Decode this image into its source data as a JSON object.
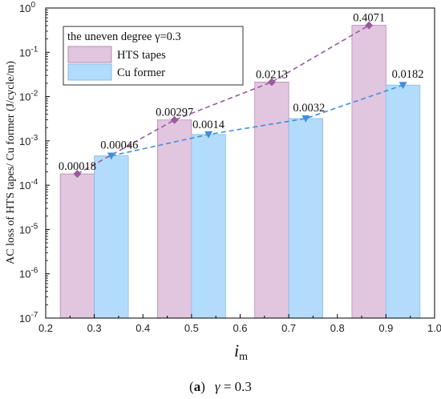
{
  "chart_data": {
    "type": "bar",
    "categories": [
      "0.3",
      "0.5",
      "0.7",
      "0.9"
    ],
    "category_x": [
      0.3,
      0.5,
      0.7,
      0.9
    ],
    "series": [
      {
        "name": "HTS tapes",
        "values": [
          0.00018,
          0.00297,
          0.0213,
          0.4071
        ],
        "labels": [
          "0.00018",
          "0.00297",
          "0.0213",
          "0.4071"
        ],
        "color": "#e2c6df",
        "edge": "#b78ab3",
        "line_color": "#9b5aa0",
        "marker": "diamond"
      },
      {
        "name": "Cu former",
        "values": [
          0.00046,
          0.0014,
          0.0032,
          0.0182
        ],
        "labels": [
          "0.00046",
          "0.0014",
          "0.0032",
          "0.0182"
        ],
        "color": "#b3dcfa",
        "edge": "#86bde6",
        "line_color": "#3f8fe0",
        "marker": "triangle-down"
      }
    ],
    "xlabel_main": "i",
    "xlabel_sub": "m",
    "ylabel": "AC loss of HTS tapes/ Cu former (J/cycle/m)",
    "xlim": [
      0.2,
      1.0
    ],
    "xticks": [
      "0.2",
      "0.3",
      "0.4",
      "0.5",
      "0.6",
      "0.7",
      "0.8",
      "0.9",
      "1.0"
    ],
    "yscale": "log",
    "ylim": [
      1e-07,
      1
    ],
    "yticks_exp": [
      "-7",
      "-6",
      "-5",
      "-4",
      "-3",
      "-2",
      "-1",
      "0"
    ],
    "ytick_base": "10",
    "legend": {
      "title": "the uneven degree γ=0.3",
      "placement": "top-left"
    },
    "grid": false,
    "trend_lines": "dashed"
  },
  "caption": {
    "letter": "a",
    "symbol": "γ",
    "text": " = 0.3"
  }
}
